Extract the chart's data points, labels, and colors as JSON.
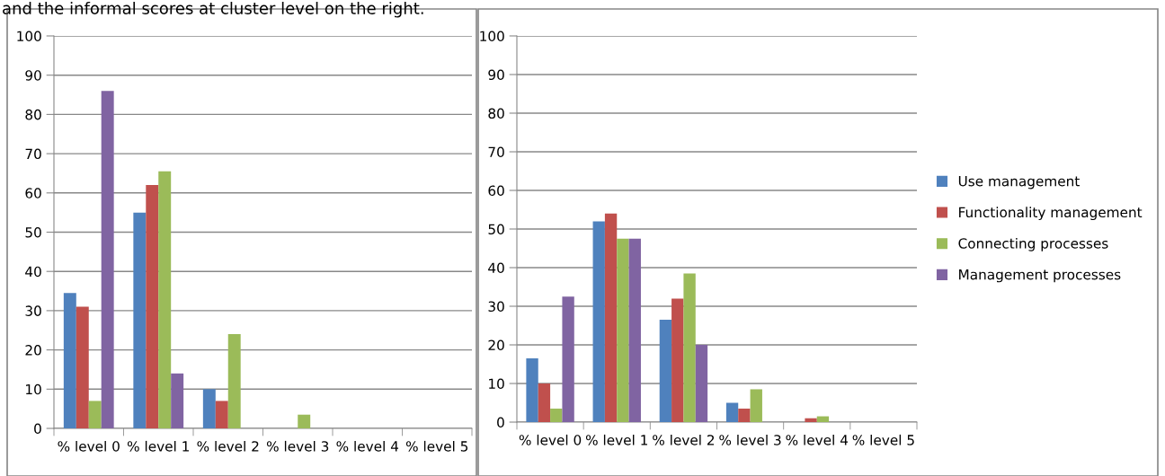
{
  "chart_data": [
    {
      "type": "bar",
      "annotations": [
        "and the informal scores at cluster level on the right."
      ],
      "categories": [
        "% level 0",
        "% level 1",
        "% level 2",
        "% level 3",
        "% level 4",
        "% level 5"
      ],
      "ylim": [
        0,
        100
      ],
      "yticks": [
        0,
        10,
        20,
        30,
        40,
        50,
        60,
        70,
        80,
        90,
        100
      ],
      "grid": "y",
      "legend": false,
      "series": [
        {
          "color": "#4f81bd",
          "values": [
            34.5,
            55,
            10,
            0,
            0,
            0
          ]
        },
        {
          "color": "#c0504d",
          "values": [
            31,
            62,
            7,
            0,
            0,
            0
          ]
        },
        {
          "color": "#9bbb59",
          "values": [
            7,
            65.5,
            24,
            3.5,
            0,
            0
          ]
        },
        {
          "color": "#8064a2",
          "values": [
            86,
            14,
            0,
            0,
            0,
            0
          ]
        }
      ]
    },
    {
      "type": "bar",
      "categories": [
        "% level 0",
        "% level 1",
        "% level 2",
        "% level 3",
        "% level 4",
        "% level 5"
      ],
      "ylim": [
        0,
        100
      ],
      "yticks": [
        0,
        10,
        20,
        30,
        40,
        50,
        60,
        70,
        80,
        90,
        100
      ],
      "grid": "y",
      "legend": "right",
      "series": [
        {
          "name": "Use management",
          "color": "#4f81bd",
          "values": [
            16.5,
            52,
            26.5,
            5,
            0,
            0
          ]
        },
        {
          "name": "Functionality management",
          "color": "#c0504d",
          "values": [
            10,
            54,
            32,
            3.5,
            1,
            0
          ]
        },
        {
          "name": "Connecting processes",
          "color": "#9bbb59",
          "values": [
            3.5,
            47.5,
            38.5,
            8.5,
            1.5,
            0
          ]
        },
        {
          "name": "Management processes",
          "color": "#8064a2",
          "values": [
            32.5,
            47.5,
            20,
            0,
            0,
            0
          ]
        }
      ]
    }
  ]
}
